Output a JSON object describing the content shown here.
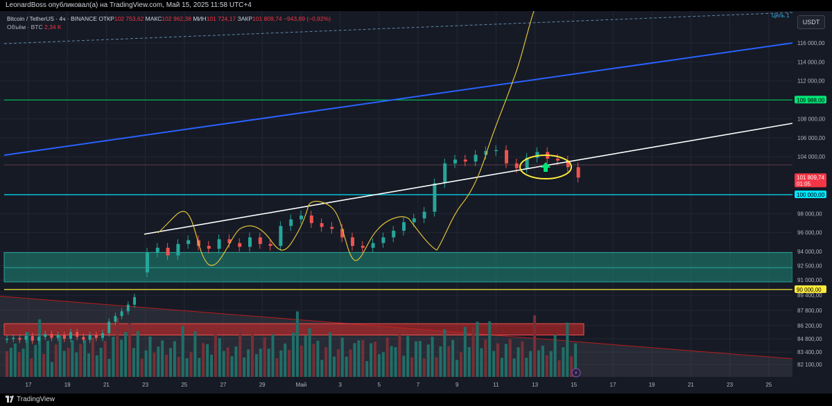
{
  "header": {
    "text": "LeonardBoss опубликовал(а) на TradingView.com, Май 15, 2025 11:58 UTC+4"
  },
  "footer": {
    "brand": "TradingView"
  },
  "legend": {
    "symbol": "Bitcoin / TetherUS · 4ч · BINANCE",
    "open_label": "ОТКР",
    "open_value": "102 753,62",
    "high_label": "МАКС",
    "high_value": "102 962,38",
    "low_label": "МИН",
    "low_value": "101 724,17",
    "close_label": "ЗАКР",
    "close_value": "101 809,74",
    "change": "−943,89 (−0,92%)",
    "volume_label": "Объём · BTC",
    "volume_value": "2,34 K"
  },
  "currency_button": "USDT",
  "target_label": "Цель 1",
  "colors": {
    "up": "#26a69a",
    "down": "#ef5350",
    "accent_blue": "#2962ff",
    "bg": "#161a25"
  },
  "chart_data": {
    "type": "candlestick",
    "price_axis": {
      "ticks": [
        82100,
        83400,
        84800,
        86200,
        87800,
        89400,
        91000,
        92500,
        94000,
        96000,
        98000,
        104000,
        106000,
        108000,
        110000,
        112000,
        114000,
        116000
      ],
      "tick_labels": [
        "82 100,00",
        "83 400,00",
        "84 800,00",
        "86 200,00",
        "87 800,00",
        "89 400,00",
        "91 000,00",
        "92 500,00",
        "94 000,00",
        "96 000,00",
        "98 000,00",
        "104 000,00",
        "106 000,00",
        "108 000,00",
        "110 000,00",
        "112 000,00",
        "114 000,00",
        "116 000,00"
      ]
    },
    "time_axis": {
      "labels": [
        "17",
        "19",
        "21",
        "23",
        "25",
        "27",
        "29",
        "Май",
        "3",
        "5",
        "7",
        "9",
        "11",
        "13",
        "15",
        "17",
        "19",
        "21",
        "23",
        "25"
      ]
    },
    "price_tags": [
      {
        "text": "109 988,00",
        "price": 109988,
        "color": "#00e676"
      },
      {
        "text": "101 809,74",
        "sub": "01:05",
        "price": 101810,
        "color": "#f23645"
      },
      {
        "text": "100 000,00",
        "price": 100000,
        "color": "#00e5ff"
      },
      {
        "text": "90 000,00",
        "price": 90000,
        "color": "#ffeb3b"
      }
    ],
    "horizontal_lines": [
      {
        "price": 109988,
        "color": "#00c853"
      },
      {
        "price": 100000,
        "color": "#00e5ff"
      },
      {
        "price": 90000,
        "color": "#ffeb3b"
      }
    ],
    "zones": [
      {
        "type": "demand",
        "from": 90800,
        "to": 93900,
        "color": "#1f8a7a"
      },
      {
        "type": "supply",
        "from": 85200,
        "to": 86400,
        "color": "#c62828"
      }
    ],
    "approx_close_series": [
      93900,
      94400,
      93600,
      94800,
      95200,
      94600,
      94300,
      95300,
      94900,
      94500,
      95500,
      94800,
      94600,
      96700,
      97400,
      97800,
      97000,
      96600,
      96400,
      95500,
      94600,
      94400,
      94900,
      95500,
      96200,
      97100,
      97500,
      98200,
      101200,
      103300,
      103700,
      103500,
      104200,
      104600,
      104700,
      103300,
      102800,
      103900,
      104500,
      103800,
      103600,
      102900,
      101800
    ],
    "approx_volume_series": [
      62,
      45,
      38,
      52,
      40,
      48,
      35,
      42,
      58,
      39,
      44,
      36,
      50,
      47,
      55,
      41,
      39,
      46,
      43,
      37,
      40,
      48,
      52,
      45,
      41,
      38,
      57,
      63,
      70,
      59,
      54,
      49,
      56,
      44,
      41,
      46,
      51,
      43,
      39,
      42,
      38,
      36,
      34
    ]
  }
}
